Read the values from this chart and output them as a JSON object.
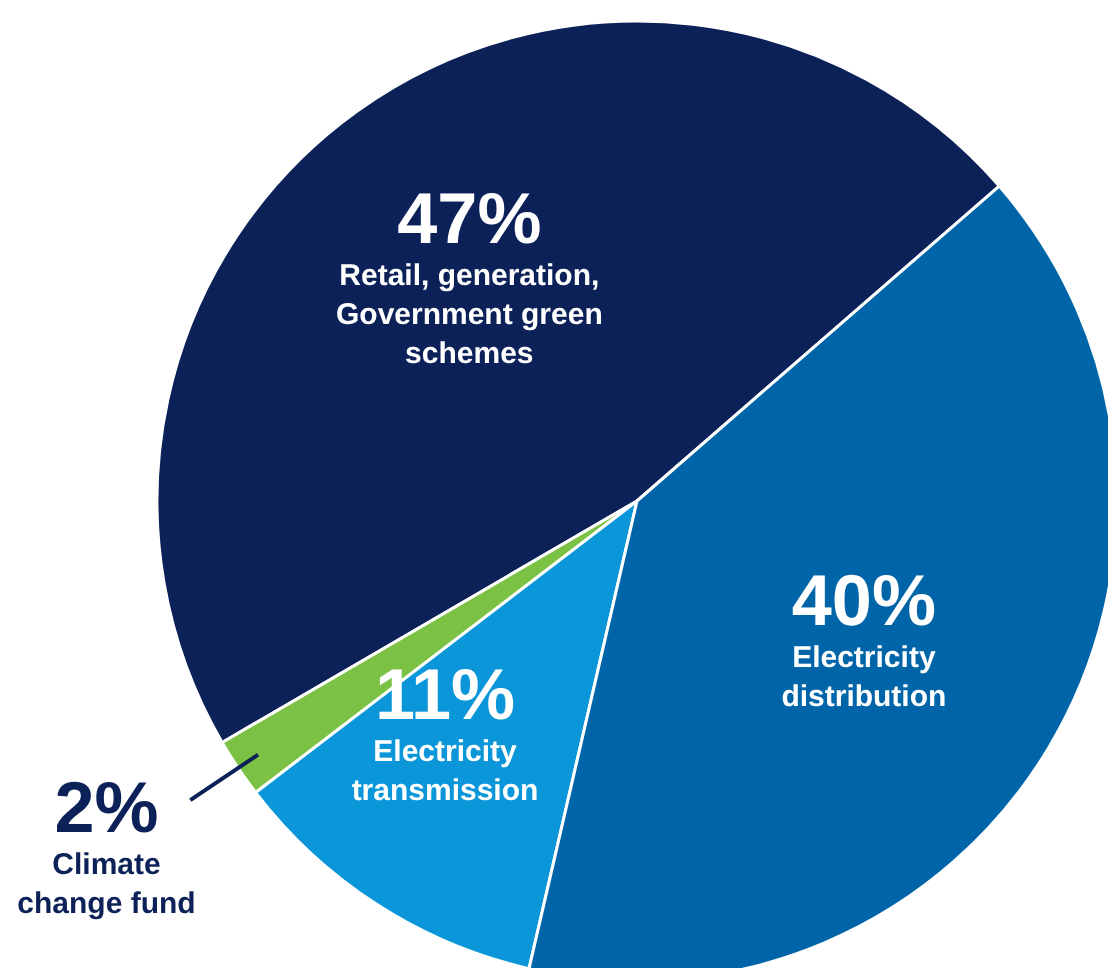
{
  "chart_data": {
    "type": "pie",
    "categories": [
      "Retail, generation,\nGovernment green\nschemes",
      "Climate\nchange fund",
      "Electricity\ntransmission",
      "Electricity\ndistribution"
    ],
    "values": [
      47,
      2,
      11,
      40
    ],
    "colors": [
      "#0b2158",
      "#7bc143",
      "#0a96d9",
      "#0065a8"
    ],
    "value_labels": [
      "47%",
      "2%",
      "11%",
      "40%"
    ]
  }
}
